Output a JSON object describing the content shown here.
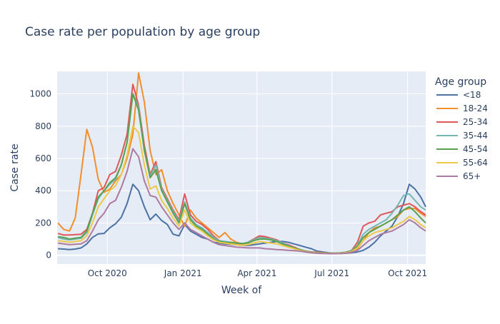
{
  "chart_data": {
    "type": "line",
    "title": "Case rate per population by age group",
    "xlabel": "Week of",
    "ylabel": "Case rate",
    "x_ticks": [
      {
        "date": "2020-10-01",
        "label": "Oct 2020"
      },
      {
        "date": "2021-01-01",
        "label": "Jan 2021"
      },
      {
        "date": "2021-04-01",
        "label": "Apr 2021"
      },
      {
        "date": "2021-07-01",
        "label": "Jul 2021"
      },
      {
        "date": "2021-10-01",
        "label": "Oct 2021"
      }
    ],
    "y_ticks": [
      0,
      200,
      400,
      600,
      800,
      1000
    ],
    "xlim": [
      "2020-08-01",
      "2021-10-23"
    ],
    "ylim": [
      -55,
      1140
    ],
    "grid": true,
    "legend_title": "Age group",
    "legend_position": "right",
    "x": [
      "2020-08-02",
      "2020-08-09",
      "2020-08-16",
      "2020-08-23",
      "2020-08-30",
      "2020-09-06",
      "2020-09-13",
      "2020-09-20",
      "2020-09-27",
      "2020-10-04",
      "2020-10-11",
      "2020-10-18",
      "2020-10-25",
      "2020-11-01",
      "2020-11-08",
      "2020-11-15",
      "2020-11-22",
      "2020-11-29",
      "2020-12-06",
      "2020-12-13",
      "2020-12-20",
      "2020-12-27",
      "2021-01-03",
      "2021-01-10",
      "2021-01-17",
      "2021-01-24",
      "2021-01-31",
      "2021-02-07",
      "2021-02-14",
      "2021-02-21",
      "2021-02-28",
      "2021-03-07",
      "2021-03-14",
      "2021-03-21",
      "2021-03-28",
      "2021-04-04",
      "2021-04-11",
      "2021-04-18",
      "2021-04-25",
      "2021-05-02",
      "2021-05-09",
      "2021-05-16",
      "2021-05-23",
      "2021-05-30",
      "2021-06-06",
      "2021-06-13",
      "2021-06-20",
      "2021-06-27",
      "2021-07-04",
      "2021-07-11",
      "2021-07-18",
      "2021-07-25",
      "2021-08-01",
      "2021-08-08",
      "2021-08-15",
      "2021-08-22",
      "2021-08-29",
      "2021-09-05",
      "2021-09-12",
      "2021-09-19",
      "2021-09-26",
      "2021-10-03",
      "2021-10-10",
      "2021-10-17",
      "2021-10-23"
    ],
    "series": [
      {
        "name": "<18",
        "color": "#4c72a4",
        "values": [
          40,
          38,
          35,
          38,
          45,
          70,
          110,
          132,
          135,
          170,
          195,
          235,
          320,
          440,
          400,
          300,
          220,
          255,
          215,
          190,
          130,
          120,
          190,
          150,
          130,
          110,
          100,
          80,
          75,
          70,
          68,
          65,
          62,
          60,
          65,
          70,
          75,
          80,
          85,
          85,
          80,
          70,
          60,
          50,
          40,
          25,
          20,
          15,
          12,
          10,
          12,
          15,
          20,
          30,
          50,
          80,
          120,
          150,
          180,
          240,
          320,
          440,
          410,
          360,
          300
        ]
      },
      {
        "name": "18-24",
        "color": "#f28e2b",
        "values": [
          200,
          160,
          150,
          230,
          500,
          780,
          670,
          470,
          390,
          410,
          460,
          500,
          600,
          750,
          1130,
          950,
          650,
          500,
          530,
          400,
          320,
          250,
          180,
          280,
          230,
          200,
          170,
          140,
          110,
          140,
          100,
          80,
          70,
          80,
          100,
          120,
          110,
          100,
          90,
          70,
          55,
          40,
          30,
          25,
          20,
          18,
          15,
          12,
          12,
          14,
          18,
          25,
          40,
          90,
          140,
          170,
          180,
          200,
          220,
          240,
          280,
          290,
          290,
          260,
          240
        ]
      },
      {
        "name": "25-34",
        "color": "#e15759",
        "values": [
          135,
          125,
          125,
          128,
          130,
          160,
          260,
          400,
          420,
          500,
          520,
          620,
          750,
          1060,
          930,
          680,
          500,
          580,
          420,
          350,
          280,
          220,
          380,
          250,
          210,
          190,
          160,
          120,
          90,
          80,
          75,
          70,
          70,
          80,
          100,
          120,
          115,
          105,
          95,
          75,
          65,
          50,
          35,
          25,
          20,
          16,
          14,
          12,
          12,
          14,
          18,
          30,
          80,
          180,
          200,
          210,
          250,
          260,
          270,
          300,
          310,
          320,
          300,
          270,
          250
        ]
      },
      {
        "name": "35-44",
        "color": "#76b7b2",
        "values": [
          110,
          100,
          95,
          100,
          105,
          140,
          250,
          350,
          400,
          440,
          470,
          560,
          700,
          1000,
          920,
          650,
          490,
          560,
          410,
          340,
          270,
          210,
          330,
          230,
          190,
          170,
          140,
          110,
          90,
          85,
          80,
          75,
          72,
          80,
          95,
          110,
          105,
          100,
          90,
          75,
          60,
          45,
          35,
          25,
          18,
          15,
          13,
          12,
          12,
          14,
          18,
          28,
          60,
          130,
          160,
          180,
          200,
          220,
          260,
          310,
          370,
          380,
          340,
          300,
          280
        ]
      },
      {
        "name": "45-54",
        "color": "#59a14f",
        "values": [
          115,
          110,
          100,
          105,
          110,
          150,
          260,
          360,
          400,
          450,
          480,
          560,
          700,
          1000,
          900,
          650,
          480,
          530,
          400,
          330,
          260,
          200,
          320,
          220,
          180,
          160,
          130,
          100,
          85,
          80,
          78,
          75,
          72,
          75,
          90,
          100,
          100,
          95,
          85,
          70,
          55,
          45,
          35,
          25,
          18,
          15,
          13,
          12,
          12,
          14,
          18,
          25,
          55,
          110,
          140,
          160,
          180,
          200,
          220,
          250,
          280,
          300,
          270,
          230,
          200
        ]
      },
      {
        "name": "55-64",
        "color": "#edc948",
        "values": [
          90,
          85,
          80,
          85,
          90,
          120,
          200,
          300,
          350,
          400,
          430,
          500,
          620,
          800,
          760,
          560,
          410,
          430,
          340,
          290,
          230,
          180,
          280,
          200,
          170,
          150,
          120,
          95,
          80,
          75,
          70,
          65,
          62,
          65,
          75,
          85,
          80,
          75,
          70,
          60,
          50,
          40,
          30,
          22,
          16,
          13,
          12,
          10,
          10,
          12,
          15,
          22,
          45,
          90,
          120,
          140,
          150,
          160,
          170,
          190,
          210,
          240,
          220,
          190,
          170
        ]
      },
      {
        "name": "65+",
        "color": "#af7aa1",
        "values": [
          75,
          70,
          65,
          68,
          70,
          90,
          150,
          220,
          260,
          320,
          340,
          420,
          520,
          660,
          610,
          460,
          370,
          360,
          300,
          250,
          200,
          160,
          200,
          160,
          140,
          120,
          100,
          80,
          65,
          60,
          55,
          50,
          48,
          45,
          45,
          45,
          40,
          38,
          35,
          33,
          30,
          28,
          25,
          20,
          15,
          12,
          10,
          9,
          9,
          10,
          12,
          18,
          30,
          60,
          90,
          110,
          130,
          140,
          150,
          170,
          190,
          220,
          200,
          170,
          150
        ]
      }
    ]
  }
}
